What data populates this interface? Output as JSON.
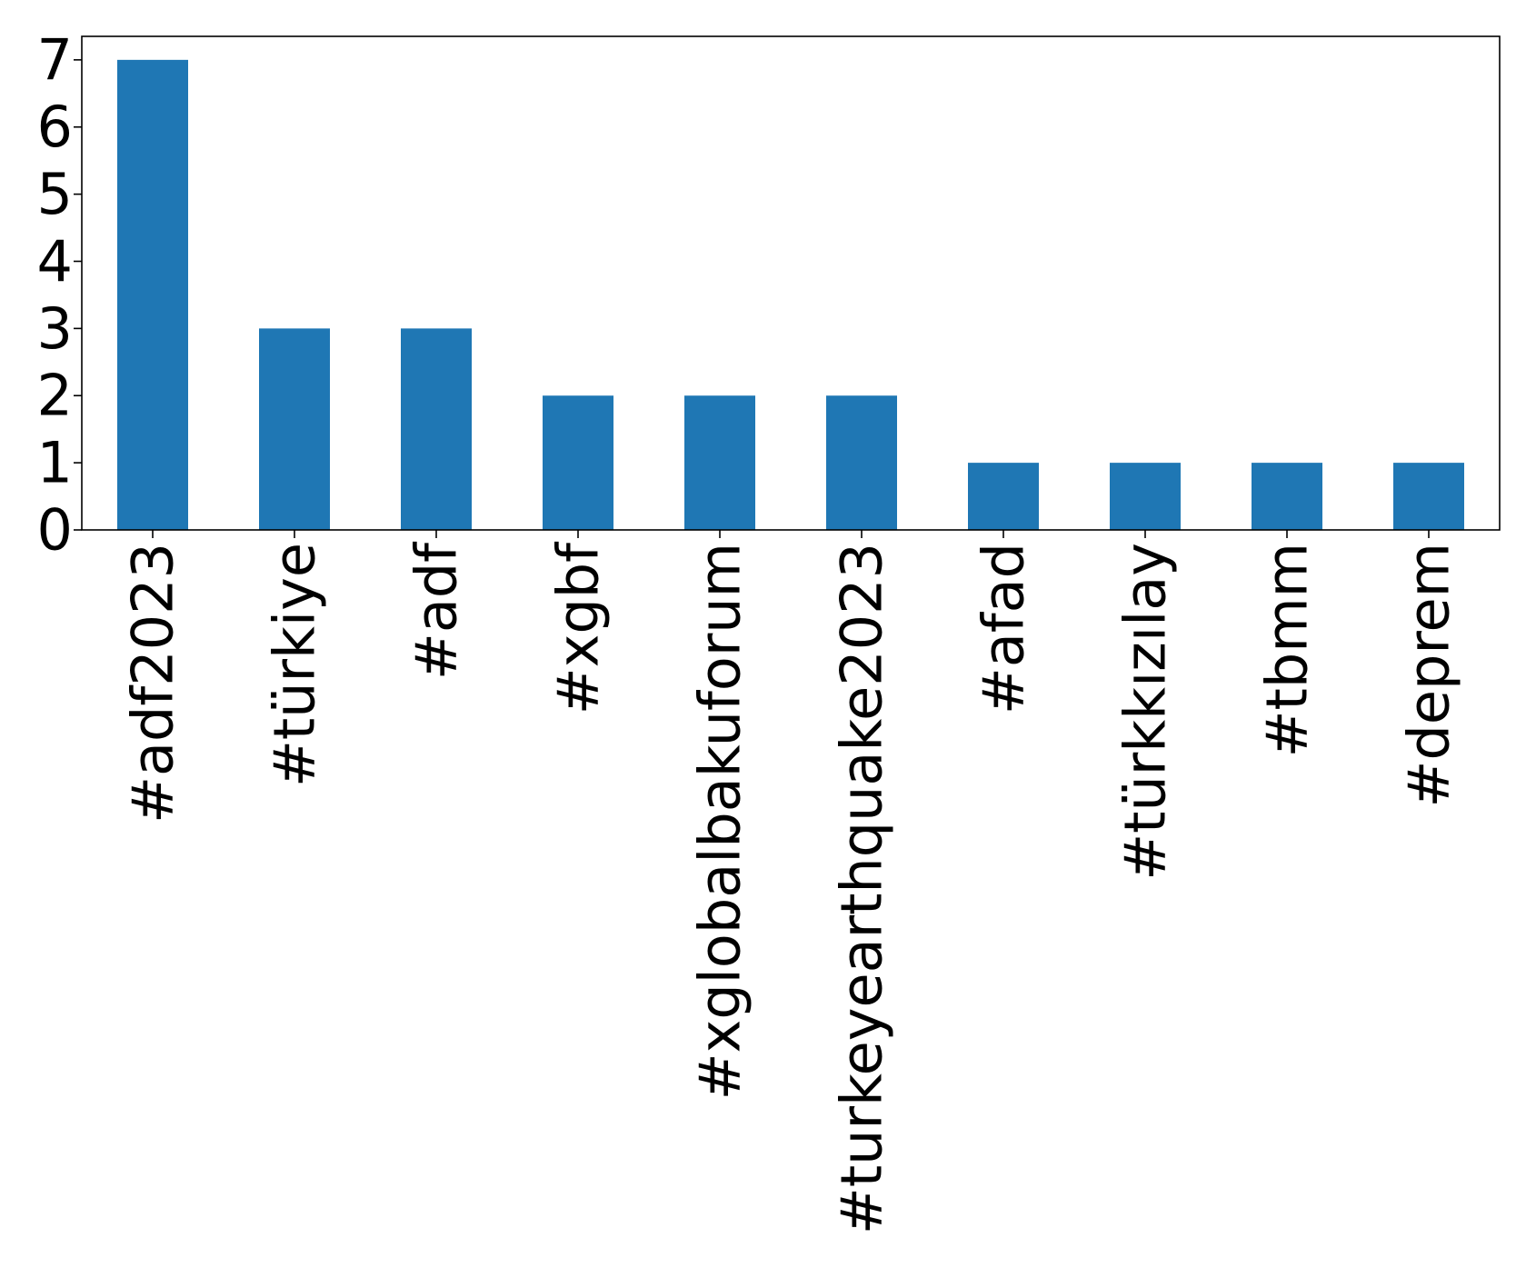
{
  "chart_data": {
    "type": "bar",
    "categories": [
      "#adf2023",
      "#türkiye",
      "#adf",
      "#xgbf",
      "#xglobalbakuforum",
      "#turkeyearthquake2023",
      "#afad",
      "#türkkızılay",
      "#tbmm",
      "#deprem"
    ],
    "values": [
      7,
      3,
      3,
      2,
      2,
      2,
      1,
      1,
      1,
      1
    ],
    "title": "",
    "xlabel": "",
    "ylabel": "",
    "ylim": [
      0,
      7.35
    ],
    "yticks": [
      "0",
      "1",
      "2",
      "3",
      "4",
      "5",
      "6",
      "7"
    ],
    "grid": false,
    "legend": "none",
    "bar_color": "#1f77b4"
  }
}
